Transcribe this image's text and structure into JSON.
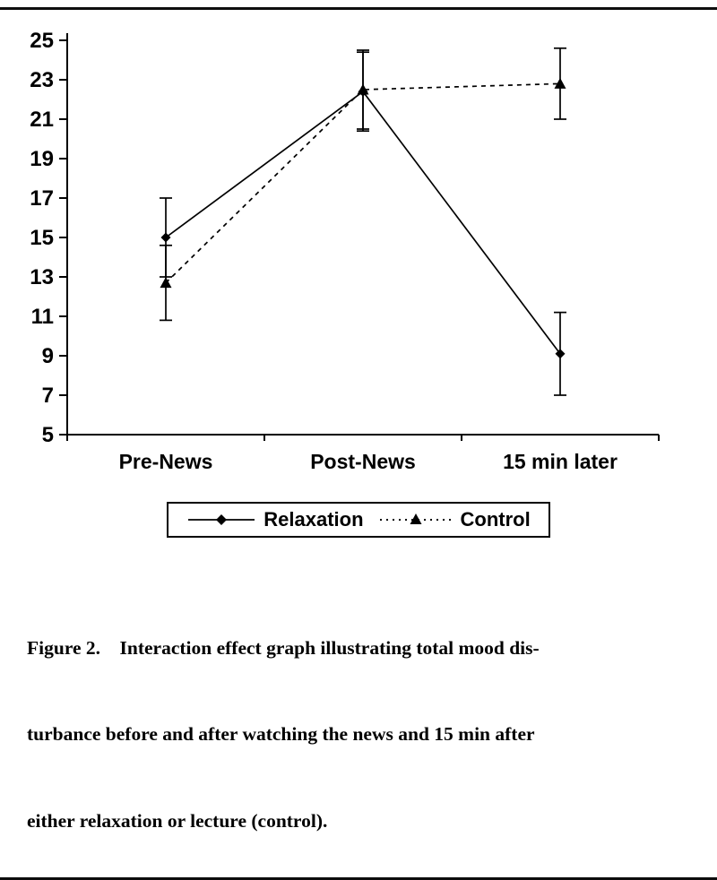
{
  "figure": {
    "caption_lines": [
      "Figure 2.    Interaction effect graph illustrating total mood dis-",
      "turbance before and after watching the news and 15 min after",
      "either relaxation or lecture (control)."
    ]
  },
  "chart_data": {
    "type": "line",
    "title": "",
    "xlabel": "",
    "ylabel": "",
    "categories": [
      "Pre-News",
      "Post-News",
      "15 min later"
    ],
    "series": [
      {
        "name": "Relaxation",
        "marker": "diamond",
        "line": "solid",
        "values": [
          15.0,
          22.4,
          9.1
        ],
        "errors": [
          2.0,
          2.0,
          2.1
        ]
      },
      {
        "name": "Control",
        "marker": "triangle",
        "line": "dashed",
        "values": [
          12.7,
          22.5,
          22.8
        ],
        "errors": [
          1.9,
          2.0,
          1.8
        ]
      }
    ],
    "ylim": [
      5,
      25
    ],
    "yticks": [
      5,
      7,
      9,
      11,
      13,
      15,
      17,
      19,
      21,
      23,
      25
    ],
    "grid": false,
    "legend_position": "bottom",
    "colors": {
      "line": "#000000",
      "text": "#000000",
      "background": "#ffffff"
    }
  }
}
